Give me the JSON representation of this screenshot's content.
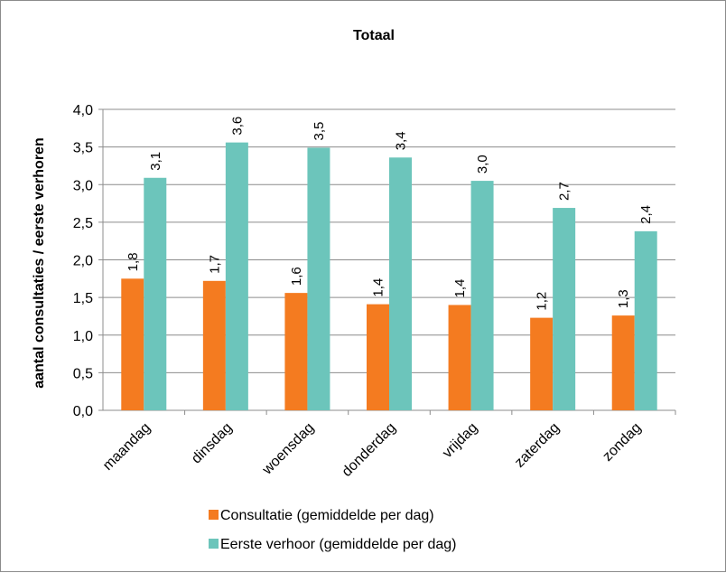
{
  "chart_data": {
    "type": "bar",
    "title": "Totaal",
    "xlabel": "",
    "ylabel": "aantal consultaties / eerste verhoren",
    "ylim": [
      0,
      4.0
    ],
    "yticks": [
      "0,0",
      "0,5",
      "1,0",
      "1,5",
      "2,0",
      "2,5",
      "3,0",
      "3,5",
      "4,0"
    ],
    "grid": true,
    "legend_position": "bottom",
    "categories": [
      "maandag",
      "dinsdag",
      "woensdag",
      "donderdag",
      "vrijdag",
      "zaterdag",
      "zondag"
    ],
    "series": [
      {
        "name": "Consultatie (gemiddelde per dag)",
        "color": "#f47b20",
        "values": [
          1.75,
          1.72,
          1.56,
          1.41,
          1.4,
          1.23,
          1.26
        ],
        "labels": [
          "1,8",
          "1,7",
          "1,6",
          "1,4",
          "1,4",
          "1,2",
          "1,3"
        ]
      },
      {
        "name": "Eerste verhoor (gemiddelde per dag)",
        "color": "#6cc5bb",
        "values": [
          3.09,
          3.56,
          3.49,
          3.36,
          3.05,
          2.69,
          2.38
        ],
        "labels": [
          "3,1",
          "3,6",
          "3,5",
          "3,4",
          "3,0",
          "2,7",
          "2,4"
        ]
      }
    ]
  }
}
